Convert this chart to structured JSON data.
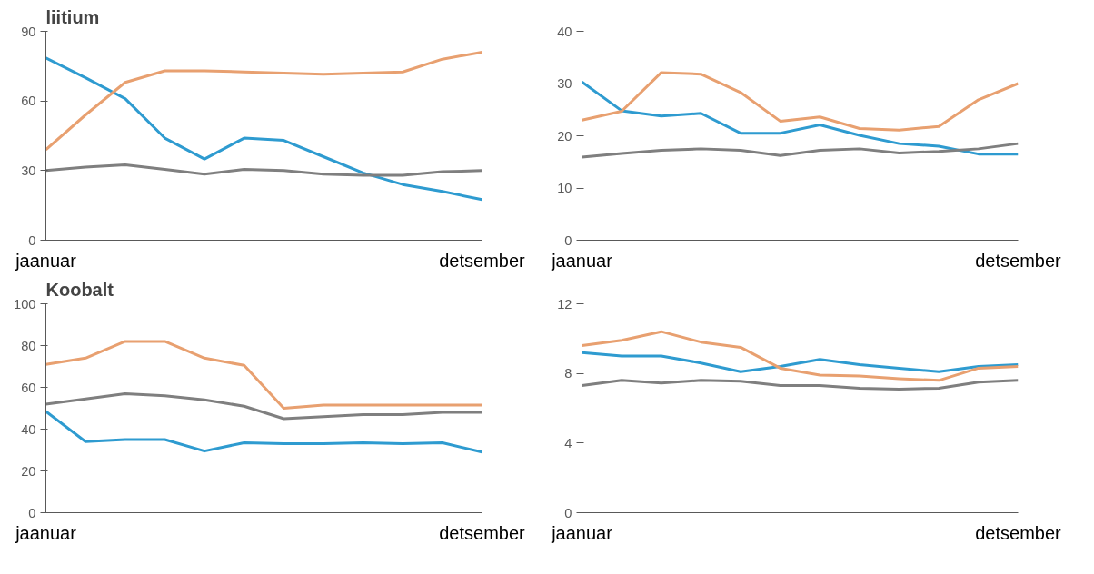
{
  "chart_data": [
    {
      "type": "line",
      "title": "liitium",
      "categories": [
        "jaanuar",
        null,
        null,
        null,
        null,
        null,
        null,
        null,
        null,
        null,
        null,
        "detsember"
      ],
      "ylim": [
        0,
        90
      ],
      "yticks": [
        0,
        30,
        60,
        90
      ],
      "grid": false,
      "series": [
        {
          "color": "#2e9bd0",
          "values": [
            78.5,
            70,
            61,
            44,
            35,
            44,
            43,
            36,
            29,
            24,
            21,
            17.5
          ]
        },
        {
          "color": "#e8a070",
          "values": [
            39,
            54,
            68,
            73,
            73,
            72.5,
            72,
            71.5,
            72,
            72.5,
            78,
            81
          ]
        },
        {
          "color": "#7f7f7f",
          "values": [
            30,
            31.5,
            32.5,
            30.5,
            28.5,
            30.5,
            30,
            28.5,
            28,
            28,
            29.5,
            30
          ]
        }
      ]
    },
    {
      "type": "line",
      "categories": [
        "jaanuar",
        null,
        null,
        null,
        null,
        null,
        null,
        null,
        null,
        null,
        null,
        "detsember"
      ],
      "ylim": [
        0,
        40
      ],
      "yticks": [
        0,
        10,
        20,
        30,
        40
      ],
      "grid": false,
      "series": [
        {
          "color": "#2e9bd0",
          "values": [
            30.3,
            24.8,
            23.8,
            24.3,
            20.5,
            20.5,
            22.1,
            20.1,
            18.5,
            18,
            16.5,
            16.5
          ]
        },
        {
          "color": "#e8a070",
          "values": [
            23,
            24.7,
            32.1,
            31.8,
            28.3,
            22.8,
            23.6,
            21.4,
            21.1,
            21.8,
            26.9,
            30
          ]
        },
        {
          "color": "#7f7f7f",
          "values": [
            15.9,
            16.6,
            17.2,
            17.5,
            17.2,
            16.2,
            17.2,
            17.5,
            16.7,
            17,
            17.5,
            18.5
          ]
        }
      ]
    },
    {
      "type": "line",
      "title": "Koobalt",
      "categories": [
        "jaanuar",
        null,
        null,
        null,
        null,
        null,
        null,
        null,
        null,
        null,
        null,
        "detsember"
      ],
      "ylim": [
        0,
        100
      ],
      "yticks": [
        0,
        20,
        40,
        60,
        80,
        100
      ],
      "grid": false,
      "series": [
        {
          "color": "#2e9bd0",
          "values": [
            48.5,
            34,
            35,
            35,
            29.5,
            33.5,
            33,
            33,
            33.5,
            33,
            33.5,
            29
          ]
        },
        {
          "color": "#e8a070",
          "values": [
            71,
            74,
            82,
            82,
            74,
            70.5,
            50,
            51.5,
            51.5,
            51.5,
            51.5,
            51.5
          ]
        },
        {
          "color": "#7f7f7f",
          "values": [
            52,
            54.5,
            57,
            56,
            54,
            51,
            45,
            46,
            47,
            47,
            48,
            48
          ]
        }
      ]
    },
    {
      "type": "line",
      "categories": [
        "jaanuar",
        null,
        null,
        null,
        null,
        null,
        null,
        null,
        null,
        null,
        null,
        "detsember"
      ],
      "ylim": [
        0,
        12
      ],
      "yticks": [
        0,
        4,
        8,
        12
      ],
      "grid": false,
      "series": [
        {
          "color": "#2e9bd0",
          "values": [
            9.2,
            9.0,
            9.0,
            8.6,
            8.1,
            8.4,
            8.8,
            8.5,
            8.3,
            8.1,
            8.4,
            8.5
          ]
        },
        {
          "color": "#e8a070",
          "values": [
            9.6,
            9.9,
            10.4,
            9.8,
            9.5,
            8.3,
            7.9,
            7.85,
            7.7,
            7.6,
            8.3,
            8.4
          ]
        },
        {
          "color": "#7f7f7f",
          "values": [
            7.3,
            7.6,
            7.45,
            7.6,
            7.55,
            7.3,
            7.3,
            7.15,
            7.1,
            7.15,
            7.5,
            7.6
          ]
        }
      ]
    }
  ]
}
